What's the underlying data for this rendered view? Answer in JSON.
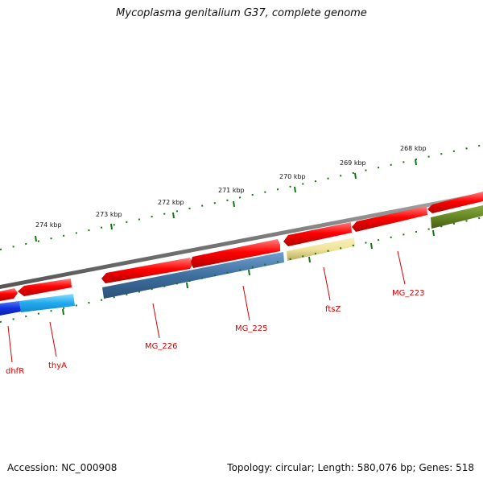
{
  "title": "Mycoplasma genitalium G37, complete genome",
  "footer": {
    "accession": "Accession: NC_000908",
    "summary": "Topology: circular; Length: 580,076 bp; Genes: 518"
  },
  "scale_labels": [
    "274 kbp",
    "273 kbp",
    "272 kbp",
    "271 kbp",
    "270 kbp",
    "269 kbp",
    "268 kbp"
  ],
  "gene_labels": [
    "dhfR",
    "thyA",
    "MG_226",
    "MG_225",
    "ftsZ",
    "MG_223"
  ],
  "colors": {
    "backbone": "#808080",
    "forward_cds": "#ee0000",
    "thyA": "#22aaee",
    "dhfR": "#1133dd",
    "MG_226_225_cog": "#3f6f9f",
    "ftsZ": "#eee090",
    "MG_223_cog": "#668822",
    "ticks": "#117711",
    "label_text": "#d40000"
  }
}
